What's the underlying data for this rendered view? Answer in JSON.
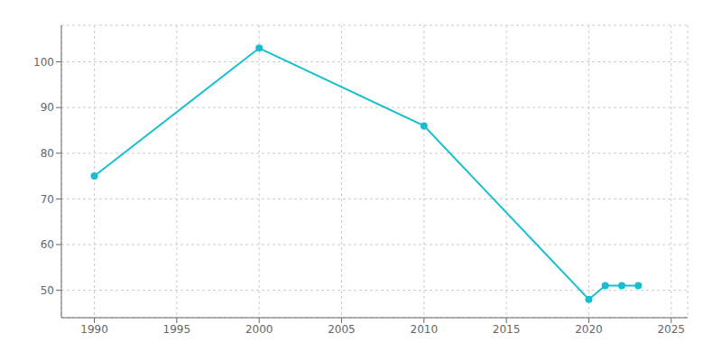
{
  "chart_data": {
    "type": "line",
    "x": [
      1990,
      2000,
      2010,
      2020,
      2021,
      2022,
      2023
    ],
    "values": [
      75,
      103,
      86,
      48,
      51,
      51,
      51
    ],
    "color": "#17becf",
    "xlim": [
      1988,
      2026
    ],
    "ylim": [
      44,
      108
    ],
    "xticks": [
      1990,
      1995,
      2000,
      2005,
      2010,
      2015,
      2020,
      2025
    ],
    "yticks": [
      50,
      60,
      70,
      80,
      90,
      100
    ],
    "grid": true,
    "marker": "circle"
  }
}
